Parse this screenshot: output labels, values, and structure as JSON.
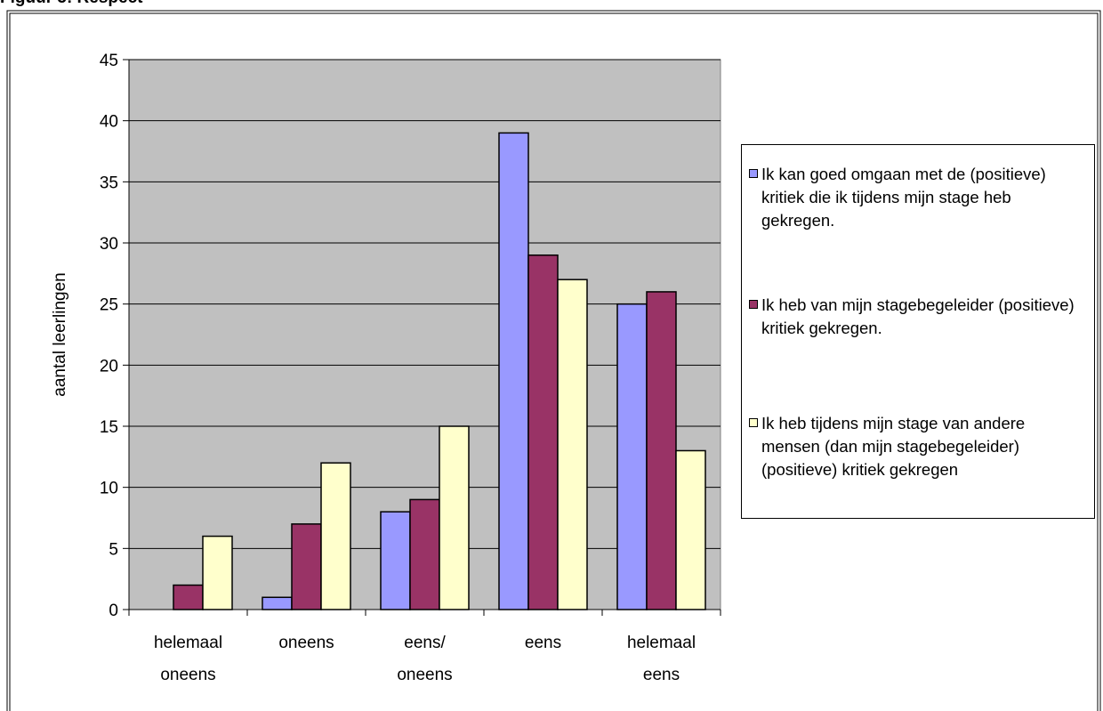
{
  "chart_data": {
    "type": "bar",
    "title": "Figuur 5: Respect",
    "y_label": "aantal leerlingen",
    "categories": [
      "helemaal oneens",
      "oneens",
      "eens/ oneens",
      "eens",
      "helemaal eens"
    ],
    "series": [
      {
        "name": "Ik kan goed omgaan met de (positieve) kritiek die ik tijdens mijn stage heb gekregen.",
        "color": "#9999ff",
        "values": [
          0,
          1,
          8,
          39,
          25
        ]
      },
      {
        "name": "Ik heb van mijn stagebegeleider (positieve) kritiek gekregen.",
        "color": "#993366",
        "values": [
          2,
          7,
          9,
          29,
          26
        ]
      },
      {
        "name": "Ik heb tijdens mijn stage van andere mensen (dan mijn stagebegeleider) (positieve) kritiek gekregen",
        "color": "#ffffcc",
        "values": [
          6,
          12,
          15,
          27,
          13
        ]
      }
    ],
    "ylim": [
      0,
      45
    ],
    "yticks": [
      0,
      5,
      10,
      15,
      20,
      25,
      30,
      35,
      40,
      45
    ],
    "grid": true,
    "plot_background": "#c0c0c0"
  }
}
